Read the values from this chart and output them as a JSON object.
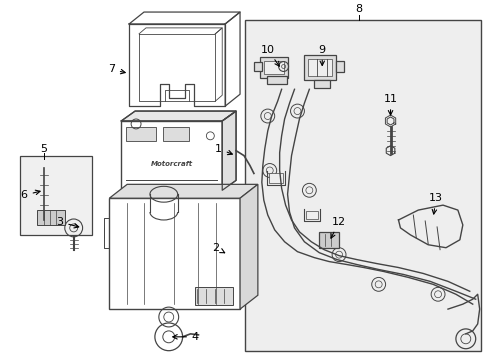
{
  "bg_color": "#ffffff",
  "line_color": "#444444",
  "fig_width": 4.89,
  "fig_height": 3.6,
  "dpi": 100,
  "panel_bg": "#eeeeee"
}
